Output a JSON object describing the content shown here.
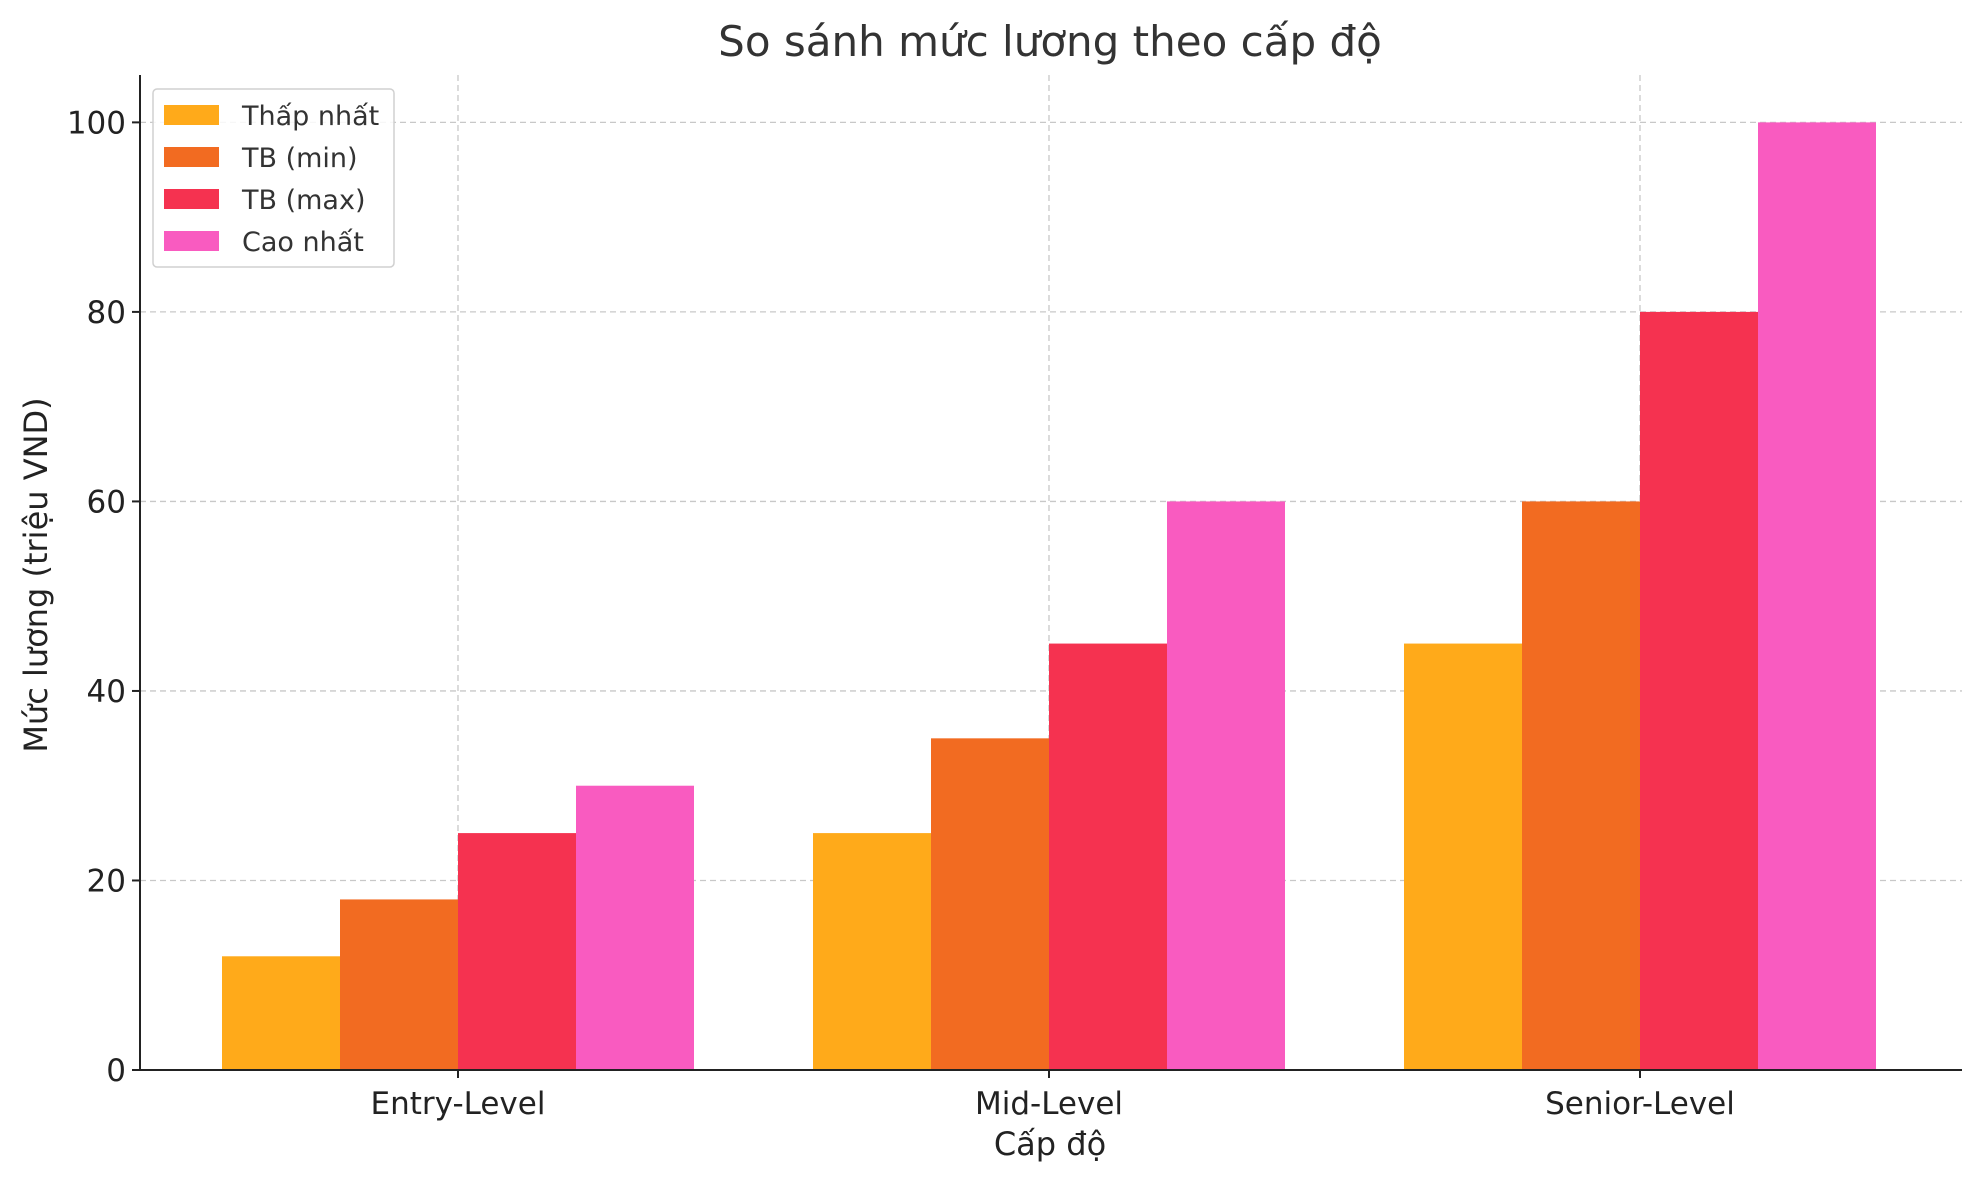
{
  "chart_data": {
    "type": "bar",
    "title": "So sánh mức lương theo cấp độ",
    "xlabel": "Cấp độ",
    "ylabel": "Mức lương (triệu VND)",
    "categories": [
      "Entry-Level",
      "Mid-Level",
      "Senior-Level"
    ],
    "series": [
      {
        "name": "Thấp nhất",
        "color": "#FFAA1A",
        "values": [
          12,
          25,
          45
        ]
      },
      {
        "name": "TB (min)",
        "color": "#F26B21",
        "values": [
          18,
          35,
          60
        ]
      },
      {
        "name": "TB (max)",
        "color": "#F53250",
        "values": [
          25,
          45,
          80
        ]
      },
      {
        "name": "Cao nhất",
        "color": "#F95BC0",
        "values": [
          30,
          60,
          100
        ]
      }
    ],
    "ylim": [
      0,
      105
    ],
    "yticks": [
      0,
      20,
      40,
      60,
      80,
      100
    ],
    "grid": true,
    "legend_position": "top-left"
  }
}
